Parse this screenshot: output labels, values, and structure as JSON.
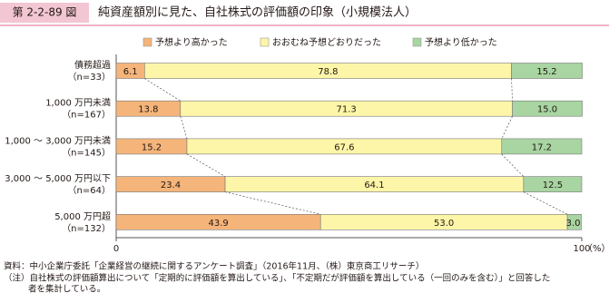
{
  "figure_label": "第 2-2-89 図",
  "chart_data": {
    "type": "stacked-bar-horizontal",
    "title": "純資産額別に見た、自社株式の評価額の印象（小規模法人）",
    "categories": [
      [
        "債務超過",
        "（n=33）"
      ],
      [
        "1,000 万円未満",
        "（n=167）"
      ],
      [
        "1,000 ～ 3,000 万円未満",
        "（n=145）"
      ],
      [
        "3,000 ～ 5,000 万円以下",
        "（n=64）"
      ],
      [
        "5,000 万円超",
        "（n=132）"
      ]
    ],
    "series": [
      {
        "name": "予想より高かった",
        "color": "#f5b57a",
        "values": [
          6.1,
          13.8,
          15.2,
          23.4,
          43.9
        ],
        "value_labels": [
          "6.1",
          "13.8",
          "15.2",
          "23.4",
          "43.9"
        ]
      },
      {
        "name": "おおむね予想どおりだった",
        "color": "#fdf6a8",
        "values": [
          78.8,
          71.3,
          67.6,
          64.1,
          53.0
        ],
        "value_labels": [
          "78.8",
          "71.3",
          "67.6",
          "64.1",
          "53.0"
        ]
      },
      {
        "name": "予想より低かった",
        "color": "#a8d5a2",
        "values": [
          15.2,
          15.0,
          17.2,
          12.5,
          3.0
        ],
        "value_labels": [
          "15.2",
          "15.0",
          "17.2",
          "12.5",
          "3.0"
        ]
      }
    ],
    "xlim": [
      0,
      100
    ],
    "xticks": [
      0,
      100
    ],
    "xlabel": "（%）"
  },
  "notes": [
    "資料：中小企業庁委託「企業経営の継続に関するアンケート調査」（2016年11月、（株）東京商工リサーチ）",
    "（注）自社株式の評価額算出について「定期的に評価額を算出している」、「不定期だが評価額を算出している（一回のみを含む）」と回答した",
    "者を集計している。"
  ]
}
